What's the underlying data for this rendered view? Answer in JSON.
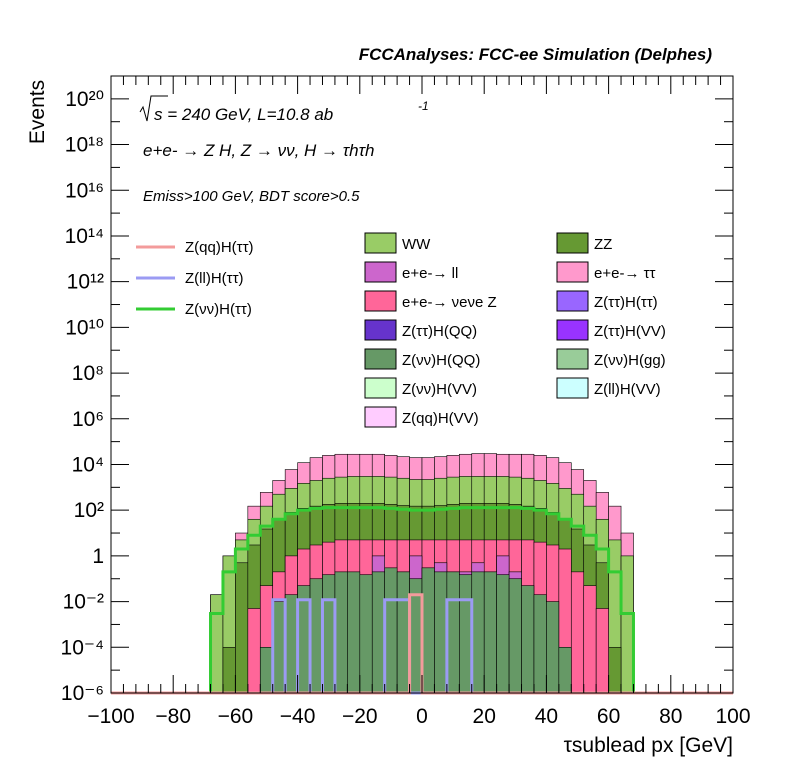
{
  "header": {
    "title": "FCCAnalyses: FCC-ee Simulation (Delphes)",
    "sqrt_s_line": "s = 240 GeV, L=10.8 ab",
    "lumi_exponent": "-1",
    "process_line": "e+e- → Z H, Z → νν, H → τhτh",
    "cut_line": "Emiss>100 GeV, BDT score>0.5"
  },
  "axes": {
    "ylabel": "Events",
    "xlabel": "τsublead px [GeV]"
  },
  "legend": {
    "signal": [
      {
        "label": "Z(qq)H(ττ)",
        "color": "#f39b9b"
      },
      {
        "label": "Z(ll)H(ττ)",
        "color": "#9b9bf3"
      },
      {
        "label": "Z(νν)H(ττ)",
        "color": "#33cc33"
      }
    ],
    "background": [
      {
        "label": "WW",
        "color": "#99cc66"
      },
      {
        "label": "ZZ",
        "color": "#669933"
      },
      {
        "label": "e+e-→ ll",
        "color": "#cc66cc"
      },
      {
        "label": "e+e-→ ττ",
        "color": "#ff99cc"
      },
      {
        "label": "e+e-→ νeνe Z",
        "color": "#ff6699"
      },
      {
        "label": "Z(ττ)H(ττ)",
        "color": "#9966ff"
      },
      {
        "label": "Z(ττ)H(QQ)",
        "color": "#6633cc"
      },
      {
        "label": "Z(ττ)H(VV)",
        "color": "#9933ff"
      },
      {
        "label": "Z(νν)H(QQ)",
        "color": "#669966"
      },
      {
        "label": "Z(νν)H(gg)",
        "color": "#99cc99"
      },
      {
        "label": "Z(νν)H(VV)",
        "color": "#ccffcc"
      },
      {
        "label": "Z(ll)H(VV)",
        "color": "#ccffff"
      },
      {
        "label": "Z(qq)H(VV)",
        "color": "#ffccff"
      }
    ]
  },
  "chart_data": {
    "type": "histogram-stacked",
    "xlabel": "τsublead px [GeV]",
    "ylabel": "Events",
    "xlim": [
      -100,
      100
    ],
    "ylim": [
      1e-06,
      1e+21
    ],
    "yscale": "log",
    "bin_width": 4,
    "bin_edges_start": -72,
    "xticks": [
      "−100",
      "−80",
      "−60",
      "−40",
      "−20",
      "0",
      "20",
      "40",
      "60",
      "80",
      "100"
    ],
    "yticks": [
      "10⁻⁶",
      "10⁻⁴",
      "10⁻²",
      "1",
      "10²",
      "10⁴",
      "10⁶",
      "10⁸",
      "10¹⁰",
      "10¹²",
      "10¹⁴",
      "10¹⁶",
      "10¹⁸",
      "10²⁰"
    ],
    "stack_envelopes": [
      {
        "name": "e+e-→ ττ",
        "color": "#ff99cc",
        "values": [
          1e-06,
          0.02,
          1,
          10,
          150,
          600,
          2000,
          6000,
          12000,
          20000,
          25000,
          28000,
          28000,
          28000,
          28000,
          25000,
          22000,
          20000,
          20000,
          22000,
          25000,
          28000,
          30000,
          30000,
          28000,
          28000,
          28000,
          25000,
          20000,
          12000,
          6000,
          2000,
          600,
          150,
          10,
          1e-06
        ]
      },
      {
        "name": "WW",
        "color": "#99cc66",
        "values": [
          1e-06,
          0.02,
          1,
          5,
          40,
          150,
          500,
          900,
          1500,
          2000,
          2500,
          2800,
          3000,
          3000,
          3000,
          2800,
          2500,
          2200,
          2200,
          2500,
          2800,
          3000,
          3000,
          3000,
          3000,
          2800,
          2500,
          2000,
          1500,
          900,
          500,
          150,
          40,
          5,
          1,
          1e-06
        ]
      },
      {
        "name": "ZZ",
        "color": "#669933",
        "values": [
          1e-06,
          1e-06,
          0.0001,
          0.5,
          3,
          15,
          40,
          80,
          120,
          150,
          180,
          200,
          200,
          200,
          200,
          180,
          160,
          150,
          150,
          160,
          180,
          200,
          200,
          200,
          200,
          180,
          150,
          120,
          80,
          40,
          15,
          3,
          0.5,
          0.0001,
          1e-06,
          1e-06
        ]
      },
      {
        "name": "e+e-→ νeνe Z",
        "color": "#ff6699",
        "values": [
          1e-06,
          1e-06,
          1e-06,
          1e-06,
          0.005,
          0.05,
          0.2,
          1,
          2,
          3,
          4,
          5,
          5,
          5,
          5,
          5,
          5,
          5,
          5,
          5,
          5,
          5,
          5,
          5,
          5,
          5,
          5,
          4,
          3,
          2,
          0.2,
          0.05,
          0.005,
          1e-06,
          1e-06,
          1e-06
        ]
      },
      {
        "name": "e+e-→ ll",
        "color": "#cc66cc",
        "values": [
          1e-06,
          1e-06,
          1e-06,
          1e-06,
          1e-06,
          1e-06,
          1e-06,
          1e-06,
          1e-06,
          1e-06,
          1e-06,
          1e-06,
          1e-06,
          1e-06,
          1,
          0.2,
          0.2,
          1,
          0.3,
          0.5,
          0.2,
          0.2,
          0.5,
          0.2,
          1,
          0.2,
          1e-06,
          1e-06,
          1e-06,
          1e-06,
          1e-06,
          1e-06,
          1e-06,
          1e-06,
          1e-06,
          1e-06
        ]
      },
      {
        "name": "Z(νν)H(QQ)",
        "color": "#669966",
        "values": [
          1e-06,
          1e-06,
          1e-06,
          1e-06,
          1e-06,
          0.0001,
          0.01,
          0.02,
          0.05,
          0.1,
          0.15,
          0.2,
          0.2,
          0.15,
          0.2,
          0.3,
          0.2,
          0.1,
          0.3,
          0.2,
          0.2,
          0.15,
          0.2,
          0.2,
          0.15,
          0.1,
          0.05,
          0.02,
          0.01,
          0.0001,
          1e-06,
          1e-06,
          1e-06,
          1e-06,
          1e-06,
          1e-06
        ]
      }
    ],
    "signals": [
      {
        "name": "Z(νν)H(ττ)",
        "color": "#33cc33",
        "values": [
          1e-06,
          0.003,
          0.2,
          2,
          8,
          20,
          40,
          70,
          100,
          120,
          130,
          130,
          130,
          130,
          130,
          120,
          110,
          100,
          100,
          110,
          120,
          130,
          130,
          130,
          130,
          130,
          120,
          100,
          70,
          40,
          20,
          8,
          2,
          0.2,
          0.003,
          1e-06
        ]
      },
      {
        "name": "Z(ll)H(ττ)",
        "color": "#9b9bf3",
        "values": [
          1e-06,
          1e-06,
          1e-06,
          1e-06,
          1e-06,
          1e-06,
          0.012,
          1e-06,
          0.012,
          1e-06,
          0.012,
          1e-06,
          1e-06,
          1e-06,
          1e-06,
          0.012,
          0.012,
          1e-06,
          1e-06,
          1e-06,
          0.012,
          0.012,
          1e-06,
          1e-06,
          1e-06,
          1e-06,
          1e-06,
          1e-06,
          1e-06,
          1e-06,
          1e-06,
          1e-06,
          1e-06,
          1e-06,
          1e-06,
          1e-06
        ]
      },
      {
        "name": "Z(qq)H(ττ)",
        "color": "#f39b9b",
        "values": [
          1e-06,
          1e-06,
          1e-06,
          1e-06,
          1e-06,
          1e-06,
          1e-06,
          1e-06,
          1e-06,
          1e-06,
          1e-06,
          1e-06,
          1e-06,
          1e-06,
          1e-06,
          1e-06,
          1e-06,
          0.02,
          1e-06,
          1e-06,
          1e-06,
          1e-06,
          1e-06,
          1e-06,
          1e-06,
          1e-06,
          1e-06,
          1e-06,
          1e-06,
          1e-06,
          1e-06,
          1e-06,
          1e-06,
          1e-06,
          1e-06,
          1e-06
        ]
      }
    ]
  }
}
